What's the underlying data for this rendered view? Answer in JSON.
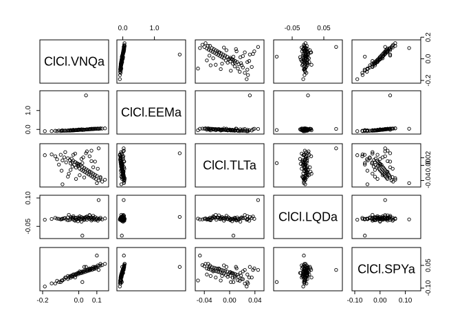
{
  "chart_data": {
    "type": "scatter",
    "subtype": "pairs-matrix",
    "variables": [
      "ClCl.VNQa",
      "ClCl.EEMa",
      "ClCl.TLTa",
      "ClCl.LQDa",
      "ClCl.SPYa"
    ],
    "ranges": [
      [
        -0.2,
        0.15
      ],
      [
        -0.1,
        1.9
      ],
      [
        -0.05,
        0.05
      ],
      [
        -0.1,
        0.1
      ],
      [
        -0.1,
        0.15
      ]
    ],
    "ticks": [
      {
        "values": [
          -0.2,
          0.0,
          0.1
        ],
        "labels": [
          "-0.2",
          "0.0",
          "0.1"
        ]
      },
      {
        "values": [
          0.0,
          1.0
        ],
        "labels": [
          "0.0",
          "1.0"
        ]
      },
      {
        "values": [
          -0.04,
          0.0,
          0.04
        ],
        "labels": [
          "-0.04",
          "0.00",
          "0.04"
        ]
      },
      {
        "values": [
          -0.05,
          0.05
        ],
        "labels": [
          "-0.05",
          "0.05"
        ]
      },
      {
        "values": [
          -0.1,
          0.0,
          0.1
        ],
        "labels": [
          "-0.10",
          "0.00",
          "0.10"
        ]
      }
    ],
    "extra_ticks": [
      {
        "var": 0,
        "side": "right",
        "values": [
          -0.2,
          0.0,
          0.2
        ],
        "labels": [
          "-0.2",
          "0.0",
          "0.2"
        ]
      },
      {
        "var": 1,
        "side": "left",
        "values": [
          0.0,
          1.0
        ],
        "labels": [
          "0.0",
          "1.0"
        ]
      },
      {
        "var": 2,
        "side": "right",
        "values": [
          -0.04,
          0.0,
          0.02
        ],
        "labels": [
          "-0.04",
          "0.00",
          "0.02"
        ]
      },
      {
        "var": 3,
        "side": "left",
        "values": [
          -0.05,
          0.1
        ],
        "labels": [
          "-0.05",
          "0.10"
        ]
      },
      {
        "var": 4,
        "side": "right",
        "values": [
          -0.1,
          0.05
        ],
        "labels": [
          "-0.10",
          "0.05"
        ]
      }
    ],
    "grid": false,
    "legend": "none",
    "points": [
      [
        -0.188,
        -0.094,
        0.027,
        -0.015,
        -0.09
      ],
      [
        -0.15,
        -0.09,
        0.029,
        -0.011,
        -0.069
      ],
      [
        -0.12,
        -0.085,
        0.016,
        -0.009,
        -0.052
      ],
      [
        -0.1,
        -0.084,
        0.028,
        -0.013,
        -0.061
      ],
      [
        -0.09,
        -0.08,
        0.013,
        -0.011,
        -0.048
      ],
      [
        -0.08,
        -0.075,
        0.021,
        -0.007,
        -0.041
      ],
      [
        -0.07,
        -0.071,
        0.008,
        -0.013,
        -0.031
      ],
      [
        -0.06,
        -0.068,
        0.019,
        -0.002,
        -0.04
      ],
      [
        -0.05,
        -0.066,
        0.014,
        -0.016,
        -0.024
      ],
      [
        -0.045,
        -0.062,
        0.005,
        -0.009,
        -0.032
      ],
      [
        -0.04,
        -0.059,
        0.018,
        -0.005,
        -0.017
      ],
      [
        -0.035,
        -0.057,
        -0.003,
        -0.012,
        -0.025
      ],
      [
        -0.03,
        -0.052,
        0.012,
        -0.003,
        -0.012
      ],
      [
        -0.025,
        -0.05,
        0.001,
        -0.017,
        -0.018
      ],
      [
        -0.02,
        -0.046,
        0.009,
        -0.008,
        -0.008
      ],
      [
        -0.015,
        -0.043,
        -0.006,
        -0.004,
        -0.013
      ],
      [
        -0.01,
        -0.039,
        0.006,
        -0.013,
        -0.003
      ],
      [
        -0.005,
        -0.037,
        -0.002,
        -0.002,
        -0.009
      ],
      [
        0.0,
        -0.032,
        0.003,
        -0.011,
        0.001
      ],
      [
        0.005,
        -0.029,
        -0.009,
        -0.006,
        -0.004
      ],
      [
        0.01,
        -0.025,
        0.001,
        -0.014,
        0.006
      ],
      [
        0.015,
        -0.022,
        -0.012,
        -0.001,
        -0.001
      ],
      [
        0.02,
        -0.019,
        -0.004,
        -0.009,
        0.01
      ],
      [
        0.025,
        -0.016,
        -0.015,
        -0.005,
        0.003
      ],
      [
        0.03,
        -0.012,
        -0.007,
        -0.012,
        0.014
      ],
      [
        0.035,
        -0.009,
        -0.018,
        -0.003,
        0.007
      ],
      [
        0.04,
        -0.006,
        -0.01,
        -0.008,
        0.017
      ],
      [
        0.045,
        -0.002,
        -0.021,
        -0.015,
        0.011
      ],
      [
        0.05,
        0.001,
        -0.013,
        -0.006,
        0.021
      ],
      [
        0.055,
        0.004,
        -0.024,
        -0.002,
        0.015
      ],
      [
        0.06,
        0.007,
        -0.016,
        -0.011,
        0.025
      ],
      [
        0.065,
        0.01,
        -0.027,
        -0.007,
        0.019
      ],
      [
        0.07,
        0.014,
        -0.019,
        -0.003,
        0.028
      ],
      [
        0.075,
        0.017,
        -0.03,
        -0.013,
        0.022
      ],
      [
        0.08,
        0.02,
        -0.022,
        -0.005,
        0.031
      ],
      [
        0.085,
        0.023,
        -0.033,
        -0.009,
        0.026
      ],
      [
        0.09,
        0.027,
        -0.025,
        -0.001,
        0.035
      ],
      [
        0.095,
        0.03,
        -0.036,
        -0.012,
        0.029
      ],
      [
        0.1,
        0.033,
        -0.028,
        -0.006,
        0.038
      ],
      [
        0.11,
        0.037,
        -0.04,
        -0.01,
        0.045
      ],
      [
        0.12,
        0.042,
        -0.031,
        -0.004,
        0.049
      ],
      [
        0.13,
        0.046,
        -0.043,
        -0.013,
        0.052
      ],
      [
        0.145,
        0.055,
        -0.038,
        -0.008,
        0.06
      ],
      [
        0.04,
        1.8,
        0.032,
        0.0,
        0.04
      ],
      [
        0.11,
        0.028,
        0.045,
        0.089,
        0.02
      ],
      [
        0.1,
        0.035,
        -0.047,
        -0.013,
        0.115
      ],
      [
        -0.09,
        -0.045,
        -0.05,
        -0.009,
        -0.05
      ],
      [
        0.02,
        -0.03,
        0.006,
        -0.099,
        -0.06
      ],
      [
        -0.03,
        -0.02,
        0.028,
        0.004,
        -0.01
      ],
      [
        0.0,
        0.0,
        0.0,
        -0.008,
        0.0
      ],
      [
        -0.06,
        -0.05,
        -0.03,
        -0.018,
        -0.02
      ],
      [
        0.06,
        0.02,
        0.024,
        0.01,
        0.02
      ],
      [
        0.03,
        -0.02,
        -0.032,
        -0.016,
        0.04
      ],
      [
        -0.02,
        -0.04,
        0.031,
        -0.02,
        -0.03
      ],
      [
        0.08,
        0.04,
        -0.005,
        0.006,
        0.04
      ],
      [
        -0.11,
        -0.06,
        0.002,
        -0.01,
        -0.06
      ],
      [
        0.015,
        0.01,
        0.017,
        -0.025,
        0.0
      ],
      [
        -0.045,
        -0.035,
        -0.012,
        -0.001,
        -0.02
      ],
      [
        0.07,
        0.03,
        0.011,
        -0.019,
        0.03
      ],
      [
        0.005,
        -0.01,
        -0.026,
        0.003,
        0.01
      ],
      [
        -0.075,
        -0.055,
        0.035,
        -0.006,
        -0.03
      ],
      [
        0.105,
        0.05,
        -0.009,
        -0.02,
        0.05
      ],
      [
        -0.015,
        -0.02,
        -0.036,
        -0.014,
        -0.01
      ],
      [
        0.045,
        0.01,
        0.037,
        0.002,
        0.02
      ],
      [
        -0.13,
        -0.07,
        0.024,
        -0.005,
        -0.07
      ],
      [
        0.06,
        0.025,
        -0.017,
        0.008,
        0.03
      ],
      [
        -0.005,
        -0.015,
        0.004,
        -0.023,
        0.0
      ],
      [
        0.09,
        0.045,
        0.01,
        -0.016,
        0.04
      ],
      [
        -0.055,
        -0.045,
        -0.022,
        0.011,
        -0.03
      ],
      [
        0.025,
        0.0,
        0.021,
        -0.007,
        0.01
      ],
      [
        0.12,
        0.06,
        -0.034,
        -0.011,
        0.06
      ],
      [
        -0.035,
        -0.03,
        0.008,
        -0.004,
        -0.02
      ],
      [
        0.07,
        0.035,
        0.039,
        -0.01,
        0.03
      ],
      [
        -0.095,
        -0.06,
        -0.014,
        -0.012,
        -0.05
      ]
    ]
  }
}
